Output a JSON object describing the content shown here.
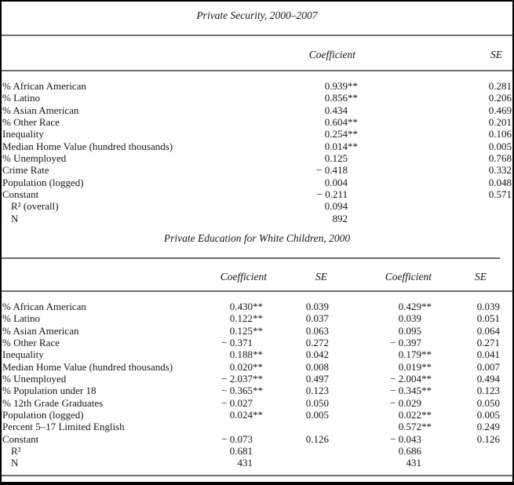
{
  "colors": {
    "rule": "#6e6e6e",
    "frame": "#000000",
    "text": "#161616"
  },
  "table1": {
    "title": "Private Security, 2000–2007",
    "headers": {
      "coefficient": "Coefficient",
      "se": "SE"
    },
    "rows": [
      {
        "label": "% African American",
        "coef": "0.939**",
        "se": "0.281"
      },
      {
        "label": "% Latino",
        "coef": "0.856**",
        "se": "0.206"
      },
      {
        "label": "% Asian American",
        "coef": "0.434",
        "se": "0.469"
      },
      {
        "label": "% Other Race",
        "coef": "0.604**",
        "se": "0.201"
      },
      {
        "label": "Inequality",
        "coef": "0.254**",
        "se": "0.106"
      },
      {
        "label": "Median Home Value (hundred thousands)",
        "coef": "0.014**",
        "se": "0.005"
      },
      {
        "label": "% Unemployed",
        "coef": "0.125",
        "se": "0.768"
      },
      {
        "label": "Crime Rate",
        "coef": "− 0.418",
        "se": "0.332"
      },
      {
        "label": "Population (logged)",
        "coef": "0.004",
        "se": "0.048"
      },
      {
        "label": "Constant",
        "coef": "− 0.211",
        "se": "0.571"
      },
      {
        "label": "R² (overall)",
        "coef": "0.094",
        "se": "",
        "indent": true
      },
      {
        "label": "N",
        "coef": "892",
        "se": "",
        "indent": true
      }
    ]
  },
  "table2": {
    "title": "Private Education for White Children, 2000",
    "headers": {
      "coefficient1": "Coefficient",
      "se1": "SE",
      "coefficient2": "Coefficient",
      "se2": "SE"
    },
    "rows": [
      {
        "label": "% African American",
        "c1": "0.430**",
        "s1": "0.039",
        "c2": "0.429**",
        "s2": "0.039"
      },
      {
        "label": "% Latino",
        "c1": "0.122**",
        "s1": "0.037",
        "c2": "0.039",
        "s2": "0.051"
      },
      {
        "label": "% Asian American",
        "c1": "0.125**",
        "s1": "0.063",
        "c2": "0.095",
        "s2": "0.064"
      },
      {
        "label": "% Other Race",
        "c1": "− 0.371",
        "s1": "0.272",
        "c2": "− 0.397",
        "s2": "0.271"
      },
      {
        "label": "Inequality",
        "c1": "0.188**",
        "s1": "0.042",
        "c2": "0.179**",
        "s2": "0.041"
      },
      {
        "label": "Median Home Value (hundred thousands)",
        "c1": "0.020**",
        "s1": "0.008",
        "c2": "0.019**",
        "s2": "0.007"
      },
      {
        "label": "% Unemployed",
        "c1": "− 2.037**",
        "s1": "0.497",
        "c2": "− 2.004**",
        "s2": "0.494"
      },
      {
        "label": "% Population under 18",
        "c1": "− 0.365**",
        "s1": "0.123",
        "c2": "− 0.345**",
        "s2": "0.123"
      },
      {
        "label": "% 12th Grade Graduates",
        "c1": "− 0.027",
        "s1": "0.050",
        "c2": "− 0.029",
        "s2": "0.050"
      },
      {
        "label": "Population (logged)",
        "c1": "0.024**",
        "s1": "0.005",
        "c2": "0.022**",
        "s2": "0.005"
      },
      {
        "label": "Percent 5–17 Limited English",
        "c1": "",
        "s1": "",
        "c2": "0.572**",
        "s2": "0.249"
      },
      {
        "label": "Constant",
        "c1": "− 0.073",
        "s1": "0.126",
        "c2": "− 0.043",
        "s2": "0.126"
      },
      {
        "label": "R²",
        "c1": "0.681",
        "s1": "",
        "c2": "0.686",
        "s2": "",
        "indent": true
      },
      {
        "label": "N",
        "c1": "431",
        "s1": "",
        "c2": "431",
        "s2": "",
        "indent": true
      }
    ]
  }
}
